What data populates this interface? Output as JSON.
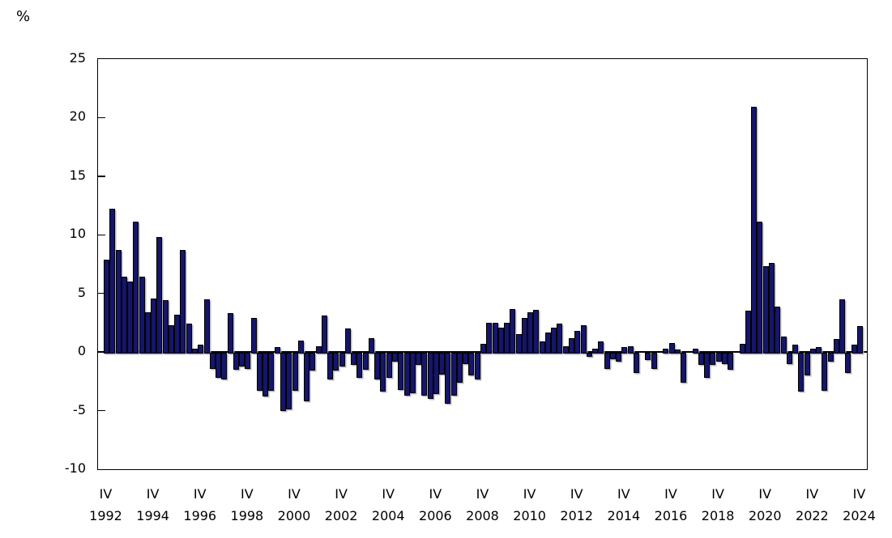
{
  "page": {
    "y_axis_unit_label": "%"
  },
  "chart_data": {
    "type": "bar",
    "title": "",
    "ylabel": "%",
    "xlabel": "",
    "frequency": "quarterly",
    "x_range": "1992-IV to 2024-IV",
    "ylim": [
      -10,
      25
    ],
    "yticks": [
      25,
      20,
      15,
      10,
      5,
      0,
      -5,
      -10
    ],
    "grid": "off",
    "legend": "none",
    "bar_color": "#15156b",
    "bar_border_color": "#000000",
    "x_tick_quarter_label": "IV",
    "x_tick_every_bars": 8,
    "x_tick_years": [
      "1992",
      "1994",
      "1996",
      "1998",
      "2000",
      "2002",
      "2004",
      "2006",
      "2008",
      "2010",
      "2012",
      "2014",
      "2016",
      "2018",
      "2020",
      "2022",
      "2024"
    ],
    "values": [
      7.9,
      12.2,
      8.7,
      6.4,
      6.0,
      11.1,
      6.4,
      3.4,
      4.6,
      9.8,
      4.4,
      2.3,
      3.2,
      8.7,
      2.4,
      0.3,
      0.6,
      4.5,
      -1.2,
      -2.0,
      -2.1,
      3.3,
      -1.3,
      -1.0,
      -1.2,
      2.9,
      -3.1,
      -3.6,
      -3.1,
      0.4,
      -4.8,
      -4.7,
      -3.1,
      1.0,
      -4.0,
      -1.4,
      0.5,
      3.1,
      -2.1,
      -1.4,
      -1.0,
      2.0,
      -0.9,
      -2.0,
      -1.3,
      1.2,
      -2.1,
      -3.2,
      -2.0,
      -0.6,
      -3.0,
      -3.5,
      -3.3,
      -0.9,
      -3.5,
      -3.8,
      -3.4,
      -1.7,
      -4.2,
      -3.5,
      -2.4,
      -0.8,
      -1.8,
      -2.1,
      0.7,
      2.5,
      2.5,
      2.1,
      2.5,
      3.7,
      1.5,
      2.9,
      3.4,
      3.6,
      0.9,
      1.7,
      2.1,
      2.4,
      0.5,
      1.2,
      1.8,
      2.3,
      -0.2,
      0.3,
      0.9,
      -1.2,
      -0.4,
      -0.6,
      0.4,
      0.5,
      -1.6,
      0.0,
      -0.5,
      -1.2,
      0.0,
      0.3,
      0.8,
      0.2,
      -2.4,
      0.0,
      0.3,
      -0.9,
      -2.0,
      -0.9,
      -0.6,
      -0.8,
      -1.3,
      0.0,
      0.7,
      3.5,
      20.9,
      11.1,
      7.3,
      7.6,
      3.9,
      1.3,
      -0.8,
      0.6,
      -3.2,
      -1.8,
      0.3,
      0.4,
      -3.1,
      -0.6,
      1.1,
      4.5,
      -1.6,
      0.6,
      2.2
    ]
  }
}
